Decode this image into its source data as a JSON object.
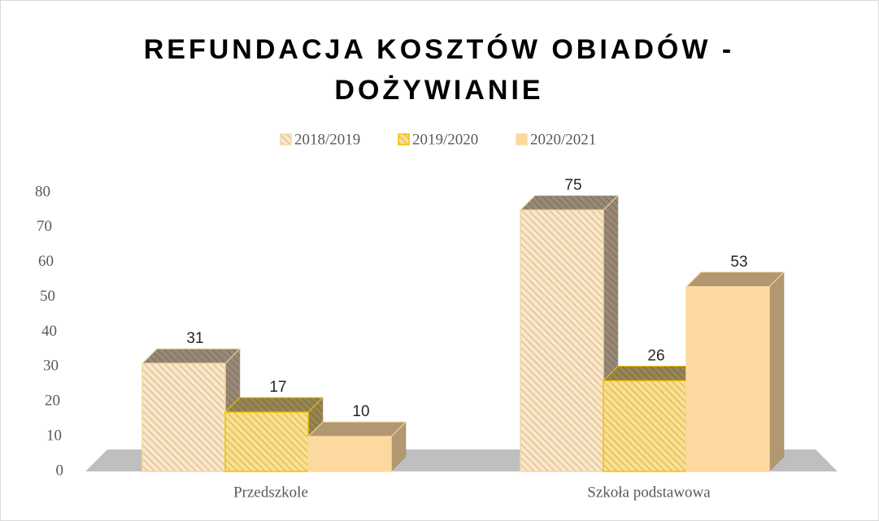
{
  "chart_data": {
    "type": "bar3d",
    "title": "REFUNDACJA KOSZTÓW OBIADÓW - DOŻYWIANIE",
    "categories": [
      "Przedszkole",
      "Szkoła podstawowa"
    ],
    "series": [
      {
        "name": "2018/2019",
        "color": "#fde6c4",
        "edge": "#f6d6a3",
        "hatched": true,
        "values": [
          31,
          75
        ]
      },
      {
        "name": "2019/2020",
        "color": "#fde08a",
        "edge": "#f2c200",
        "hatched": true,
        "values": [
          17,
          26
        ]
      },
      {
        "name": "2020/2021",
        "color": "#fdd9a0",
        "edge": "#fdd9a0",
        "hatched": false,
        "values": [
          10,
          53
        ]
      }
    ],
    "ylim": [
      0,
      80
    ],
    "yticks": [
      0,
      10,
      20,
      30,
      40,
      50,
      60,
      70,
      80
    ],
    "legend": "top"
  }
}
